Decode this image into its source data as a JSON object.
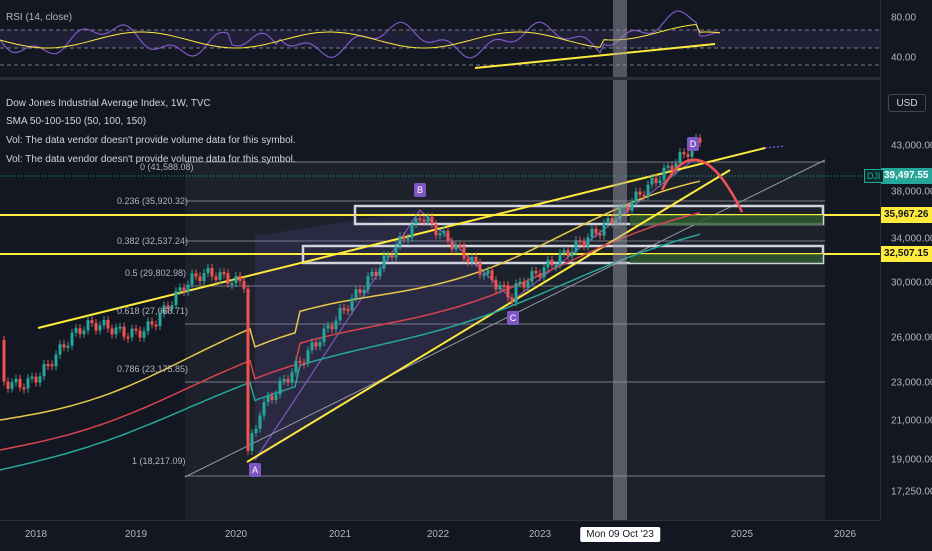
{
  "rsi": {
    "legend": "RSI (14, close)",
    "ticks": [
      "80.00",
      "40.00"
    ]
  },
  "main": {
    "legend": [
      "Dow Jones Industrial Average Index, 1W, TVC",
      "SMA 50-100-150 (50, 100, 150)",
      "Vol: The data vendor doesn't provide volume data for this symbol.",
      "Vol: The data vendor doesn't provide volume data for this symbol."
    ],
    "currency_button": "USD",
    "symbol_tag": "DJI",
    "price_ticks": [
      "43,000.00",
      "38,000.00",
      "34,000.00",
      "30,000.00",
      "26,000.00",
      "23,000.00",
      "21,000.00",
      "19,000.00",
      "17,250.00"
    ],
    "price_tags": [
      {
        "label": "39,497.55",
        "color": "#26a69a"
      },
      {
        "label": "35,967.26",
        "color": "#ffeb3b"
      },
      {
        "label": "32,507.15",
        "color": "#ffeb3b"
      }
    ],
    "fib_levels": [
      {
        "label": "0 (41,588.08)"
      },
      {
        "label": "0.236 (35,920.32)"
      },
      {
        "label": "0.382 (32,537.24)"
      },
      {
        "label": "0.5 (29,802.98)"
      },
      {
        "label": "0.618 (27,068.71)"
      },
      {
        "label": "0.786 (23,175.85)"
      },
      {
        "label": "1 (18,217.09)"
      }
    ],
    "point_labels": [
      "A",
      "B",
      "C",
      "D"
    ]
  },
  "time_axis": {
    "ticks": [
      "2018",
      "2019",
      "2020",
      "2021",
      "2022",
      "2023",
      "2025",
      "2026"
    ],
    "cursor_label": "Mon 09 Oct '23"
  },
  "colors": {
    "background": "#131722",
    "up": "#26a69a",
    "down": "#ef5350",
    "trend": "#ffeb3b",
    "rsi": "#7e57c2",
    "fib": "#787b86"
  }
}
